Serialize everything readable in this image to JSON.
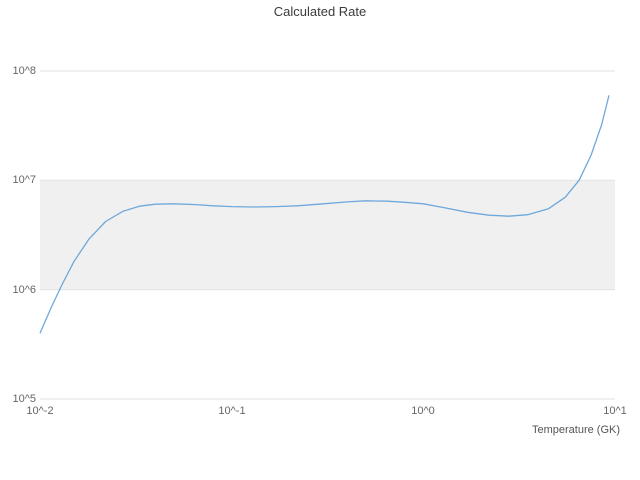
{
  "chart": {
    "title": "Calculated Rate",
    "xlabel": "Temperature (GK)"
  },
  "chart_data": {
    "type": "line",
    "title": "Calculated Rate",
    "xlabel": "Temperature (GK)",
    "ylabel": "",
    "xscale": "log",
    "yscale": "log",
    "xlim": [
      0.01,
      10
    ],
    "ylim": [
      100000,
      100000000
    ],
    "x_ticks": [
      0.01,
      0.1,
      1,
      10
    ],
    "y_ticks": [
      100000,
      1000000,
      10000000,
      100000000
    ],
    "x_tick_labels": [
      "10^-2",
      "10^-1",
      "10^0",
      "10^1"
    ],
    "y_tick_labels": [
      "10^5",
      "10^6",
      "10^7",
      "10^8"
    ],
    "grid": true,
    "legend": "none",
    "x": [
      0.01,
      0.0115,
      0.013,
      0.015,
      0.018,
      0.022,
      0.027,
      0.033,
      0.04,
      0.05,
      0.065,
      0.08,
      0.1,
      0.13,
      0.17,
      0.22,
      0.3,
      0.4,
      0.5,
      0.65,
      0.8,
      1.0,
      1.3,
      1.7,
      2.2,
      2.8,
      3.5,
      4.5,
      5.5,
      6.5,
      7.5,
      8.5,
      9.3
    ],
    "series": [
      {
        "name": "Calculated Rate",
        "values": [
          400000.0,
          700000.0,
          1100000.0,
          1800000.0,
          2900000.0,
          4200000.0,
          5200000.0,
          5800000.0,
          6050000.0,
          6100000.0,
          6000000.0,
          5850000.0,
          5750000.0,
          5700000.0,
          5750000.0,
          5850000.0,
          6100000.0,
          6350000.0,
          6500000.0,
          6450000.0,
          6300000.0,
          6100000.0,
          5600000.0,
          5100000.0,
          4800000.0,
          4700000.0,
          4850000.0,
          5500000.0,
          7000000.0,
          10000000.0,
          17000000.0,
          32000000.0,
          60000000.0
        ]
      }
    ],
    "band": {
      "from": 1000000,
      "to": 10000000,
      "color": "#f0f0f0"
    },
    "line_color": "#6fa8dc",
    "grid_color": "#e2e2e2"
  }
}
